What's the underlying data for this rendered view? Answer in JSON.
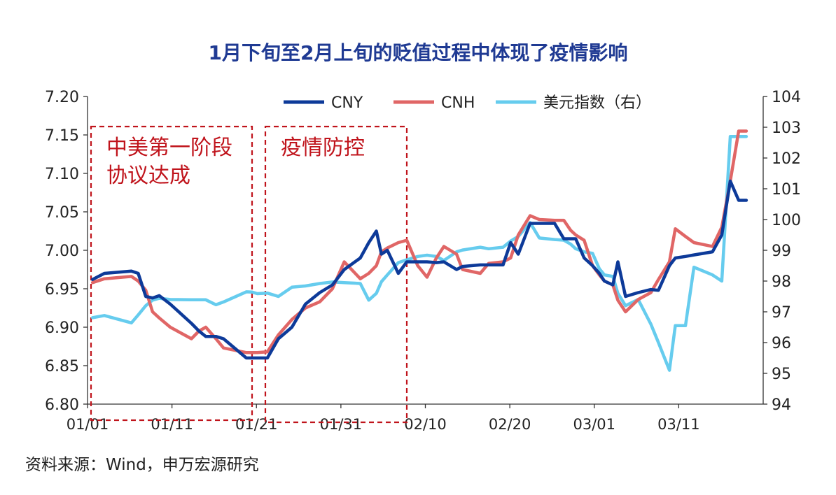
{
  "chart_data": {
    "type": "line",
    "title": "1月下旬至2月上旬的贬值过程中体现了疫情影响",
    "source": "资料来源：Wind，申万宏源研究",
    "x_tick_labels": [
      "01/01",
      "01/11",
      "01/21",
      "01/31",
      "02/10",
      "02/20",
      "03/01",
      "03/11"
    ],
    "x_tick_days": [
      0,
      10,
      20,
      30,
      40,
      50,
      60,
      70
    ],
    "x_range": [
      0,
      80
    ],
    "y_left": {
      "range": [
        6.8,
        7.2
      ],
      "ticks": [
        "6.80",
        "6.85",
        "6.90",
        "6.95",
        "7.00",
        "7.05",
        "7.10",
        "7.15",
        "7.20"
      ]
    },
    "y_right": {
      "range": [
        94,
        104
      ],
      "ticks": [
        "94",
        "95",
        "96",
        "97",
        "98",
        "99",
        "100",
        "101",
        "102",
        "103",
        "104"
      ]
    },
    "grid": false,
    "legend_position": "top",
    "series": [
      {
        "name": "CNY",
        "axis": "left",
        "color": "#0d3a99",
        "x": [
          0.6,
          2.0,
          5.2,
          6.0,
          6.9,
          7.7,
          8.5,
          9.8,
          12.3,
          13.2,
          14.0,
          15.2,
          16.1,
          18.8,
          19.5,
          20.1,
          21.3,
          22.6,
          24.2,
          25.8,
          27.5,
          29.0,
          30.4,
          32.3,
          33.3,
          34.2,
          34.8,
          35.5,
          36.8,
          37.8,
          39.1,
          40.2,
          41.3,
          42.2,
          43.7,
          44.4,
          46.5,
          47.5,
          49.2,
          50.1,
          51.0,
          52.4,
          53.5,
          55.3,
          56.4,
          57.2,
          57.8,
          58.8,
          59.8,
          60.6,
          61.2,
          62.2,
          62.8,
          63.7,
          65.2,
          66.7,
          67.6,
          68.9,
          69.6,
          70.8,
          71.8,
          74.0,
          75.1,
          76.1,
          77.1,
          78.0
        ]
      },
      {
        "name": "CNH",
        "axis": "left",
        "color": "#e06666",
        "x": [
          0.6,
          2.0,
          5.2,
          6.0,
          6.9,
          7.7,
          8.5,
          9.8,
          12.3,
          13.2,
          14.0,
          15.2,
          16.1,
          18.8,
          19.5,
          20.1,
          21.3,
          22.6,
          24.2,
          25.8,
          27.5,
          29.0,
          30.4,
          32.3,
          33.3,
          34.2,
          34.8,
          35.5,
          36.8,
          37.8,
          39.1,
          40.2,
          41.3,
          42.2,
          43.7,
          44.4,
          46.5,
          47.5,
          49.2,
          50.1,
          51.0,
          52.4,
          53.5,
          55.3,
          56.4,
          57.2,
          57.8,
          58.8,
          59.8,
          60.6,
          61.2,
          62.2,
          62.8,
          63.7,
          65.2,
          66.7,
          67.6,
          68.9,
          69.6,
          70.8,
          71.8,
          74.0,
          75.1,
          76.1,
          77.1,
          78.0
        ]
      },
      {
        "name": "美元指数（右）",
        "axis": "right",
        "color": "#66ccee",
        "x": [
          0.6,
          2.0,
          5.2,
          6.0,
          6.9,
          7.7,
          8.5,
          9.8,
          12.3,
          13.2,
          14.0,
          15.2,
          16.1,
          18.8,
          19.5,
          20.1,
          21.3,
          22.6,
          24.2,
          25.8,
          27.5,
          29.0,
          30.4,
          32.3,
          33.3,
          34.2,
          34.8,
          35.5,
          36.8,
          37.8,
          39.1,
          40.2,
          41.3,
          42.2,
          43.7,
          44.4,
          46.5,
          47.5,
          49.2,
          50.1,
          51.0,
          52.4,
          53.5,
          55.3,
          56.4,
          57.2,
          57.8,
          58.8,
          59.8,
          60.6,
          61.2,
          62.2,
          62.8,
          63.7,
          65.2,
          66.7,
          67.6,
          68.9,
          69.6,
          70.8,
          71.8,
          74.0,
          75.1,
          76.1,
          77.1,
          78.0
        ]
      }
    ],
    "annotations": [
      {
        "lines": [
          "中美第一阶段",
          "协议达成"
        ],
        "color": "#c0141c"
      },
      {
        "lines": [
          "疫情防控"
        ],
        "color": "#c0141c"
      }
    ]
  }
}
